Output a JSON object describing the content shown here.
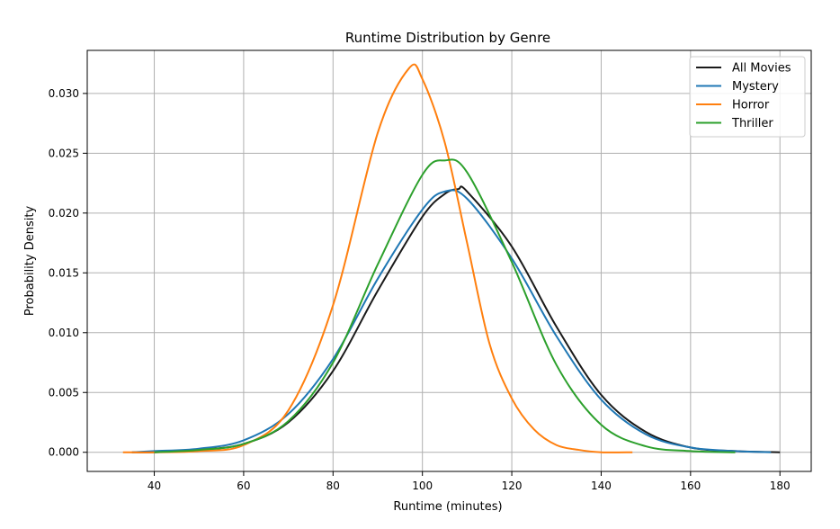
{
  "chart_data": {
    "type": "line",
    "title": "Runtime Distribution by Genre",
    "xlabel": "Runtime (minutes)",
    "ylabel": "Probability Density",
    "xlim": [
      25,
      187
    ],
    "ylim": [
      -0.0016,
      0.0336
    ],
    "xticks": [
      40,
      60,
      80,
      100,
      120,
      140,
      160,
      180
    ],
    "xtick_labels": [
      "40",
      "60",
      "80",
      "100",
      "120",
      "140",
      "160",
      "180"
    ],
    "yticks": [
      0.0,
      0.005,
      0.01,
      0.015,
      0.02,
      0.025,
      0.03
    ],
    "ytick_labels": [
      "0.000",
      "0.005",
      "0.010",
      "0.015",
      "0.020",
      "0.025",
      "0.030"
    ],
    "grid": true,
    "legend_position": "top-right",
    "series": [
      {
        "name": "All Movies",
        "color": "#1a1a1a",
        "x": [
          35,
          40,
          50,
          60,
          70,
          80,
          90,
          100,
          105,
          108,
          110,
          120,
          130,
          140,
          150,
          160,
          170,
          180
        ],
        "y": [
          0.0,
          0.0,
          0.0002,
          0.0007,
          0.0025,
          0.0068,
          0.0135,
          0.0197,
          0.0216,
          0.022,
          0.0218,
          0.0172,
          0.0105,
          0.0048,
          0.0017,
          0.0004,
          0.0001,
          0.0
        ]
      },
      {
        "name": "Mystery",
        "color": "#1f77b4",
        "x": [
          35,
          40,
          50,
          60,
          70,
          80,
          90,
          100,
          105,
          110,
          120,
          130,
          140,
          150,
          160,
          170,
          178
        ],
        "y": [
          0.0,
          0.0001,
          0.0003,
          0.001,
          0.0032,
          0.0078,
          0.0145,
          0.0203,
          0.0218,
          0.0212,
          0.0162,
          0.0097,
          0.0044,
          0.0015,
          0.0004,
          0.0001,
          0.0
        ]
      },
      {
        "name": "Horror",
        "color": "#ff7f0e",
        "x": [
          33,
          40,
          50,
          60,
          70,
          80,
          90,
          97,
          100,
          105,
          110,
          115,
          120,
          125,
          130,
          135,
          140,
          147
        ],
        "y": [
          0.0,
          0.0,
          0.0001,
          0.0006,
          0.0035,
          0.0123,
          0.0267,
          0.0321,
          0.0312,
          0.0259,
          0.0175,
          0.0091,
          0.0045,
          0.0019,
          0.0006,
          0.0002,
          0.0,
          0.0
        ]
      },
      {
        "name": "Thriller",
        "color": "#2ca02c",
        "x": [
          40,
          50,
          60,
          70,
          80,
          90,
          100,
          105,
          110,
          120,
          130,
          140,
          150,
          160,
          170
        ],
        "y": [
          0.0,
          0.0002,
          0.0007,
          0.0026,
          0.0075,
          0.0157,
          0.0232,
          0.0244,
          0.0234,
          0.0159,
          0.0073,
          0.0023,
          0.0005,
          0.0001,
          0.0
        ]
      }
    ]
  }
}
